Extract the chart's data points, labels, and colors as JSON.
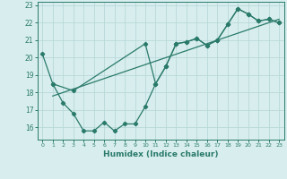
{
  "line1_x": [
    0,
    1,
    2,
    3,
    4,
    5,
    6,
    7,
    8,
    9,
    10,
    11,
    12,
    13,
    14,
    15,
    16,
    17,
    18,
    19,
    20,
    21,
    22,
    23
  ],
  "line1_y": [
    20.2,
    18.5,
    17.4,
    16.8,
    15.8,
    15.8,
    16.3,
    15.8,
    16.2,
    16.2,
    17.2,
    18.5,
    19.5,
    20.8,
    20.9,
    21.1,
    20.7,
    21.0,
    21.9,
    22.8,
    22.5,
    22.1,
    22.2,
    22.0
  ],
  "line2_x": [
    1,
    3,
    10,
    11,
    12,
    13,
    14,
    15,
    16,
    17,
    18,
    19,
    20,
    21,
    22,
    23
  ],
  "line2_y": [
    18.5,
    18.1,
    20.8,
    18.5,
    19.5,
    20.8,
    20.9,
    21.1,
    20.7,
    21.0,
    21.9,
    22.8,
    22.5,
    22.1,
    22.2,
    22.0
  ],
  "trend_x": [
    1,
    23
  ],
  "trend_y": [
    17.8,
    22.2
  ],
  "line_color": "#2a7a6a",
  "bg_color": "#d8eeee",
  "grid_color": "#b8d8d8",
  "xlabel": "Humidex (Indice chaleur)",
  "xlim": [
    -0.5,
    23.5
  ],
  "ylim": [
    15.3,
    23.2
  ],
  "yticks": [
    16,
    17,
    18,
    19,
    20,
    21,
    22,
    23
  ],
  "xticks": [
    0,
    1,
    2,
    3,
    4,
    5,
    6,
    7,
    8,
    9,
    10,
    11,
    12,
    13,
    14,
    15,
    16,
    17,
    18,
    19,
    20,
    21,
    22,
    23
  ]
}
